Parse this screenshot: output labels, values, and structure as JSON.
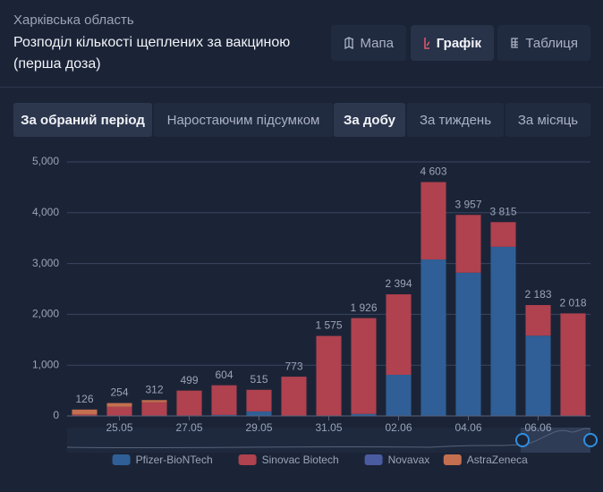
{
  "header": {
    "region": "Харківська область",
    "title": "Розподіл кількості щеплених за вакциною (перша доза)"
  },
  "view_buttons": [
    "Мапа",
    "Графік",
    "Таблиця"
  ],
  "mode_tabs": [
    "За обраний період",
    "Наростаючим підсумком"
  ],
  "period_tabs": [
    "За добу",
    "За тиждень",
    "За місяць"
  ],
  "chart_data": {
    "type": "stacked-bar",
    "categories": [
      null,
      "25.05",
      null,
      "27.05",
      null,
      "29.05",
      null,
      "31.05",
      null,
      "02.06",
      null,
      "04.06",
      null,
      "06.06",
      null
    ],
    "series": [
      {
        "name": "Pfizer-BioNTech",
        "color": "#2f5f96",
        "values": [
          0,
          0,
          0,
          10,
          20,
          90,
          0,
          0,
          40,
          810,
          3080,
          2820,
          3330,
          1580,
          0
        ]
      },
      {
        "name": "Sinovac Biotech",
        "color": "#b0414e",
        "values": [
          30,
          180,
          270,
          489,
          584,
          425,
          773,
          1575,
          1886,
          1584,
          1523,
          1137,
          485,
          603,
          2018
        ]
      },
      {
        "name": "Novavax",
        "color": "#4a5ba0",
        "values": [
          0,
          0,
          0,
          0,
          0,
          0,
          0,
          0,
          0,
          0,
          0,
          0,
          0,
          0,
          0
        ]
      },
      {
        "name": "AstraZeneca",
        "color": "#c46f50",
        "values": [
          96,
          74,
          42,
          0,
          0,
          0,
          0,
          0,
          0,
          0,
          0,
          0,
          0,
          0,
          0
        ]
      }
    ],
    "totals": [
      126,
      254,
      312,
      499,
      604,
      515,
      773,
      1575,
      1926,
      2394,
      4603,
      3957,
      3815,
      2183,
      2018
    ],
    "total_labels": [
      "126",
      "254",
      "312",
      "499",
      "604",
      "515",
      "773",
      "1 575",
      "1 926",
      "2 394",
      "4 603",
      "3 957",
      "3 815",
      "2 183",
      "2 018"
    ],
    "ylim": [
      0,
      5000
    ],
    "yticks": [
      0,
      {
        "value": 1000,
        "label": "1,000"
      },
      {
        "value": 2000,
        "label": "2,000"
      },
      {
        "value": 3000,
        "label": "3,000"
      },
      {
        "value": 4000,
        "label": "4,000"
      },
      {
        "value": 5000,
        "label": "5,000"
      }
    ],
    "grid": true
  }
}
